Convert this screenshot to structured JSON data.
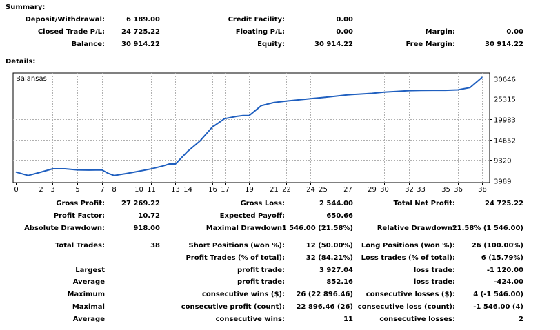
{
  "summary": {
    "heading": "Summary:",
    "deposit_withdrawal": {
      "label": "Deposit/Withdrawal:",
      "value": "6 189.00"
    },
    "closed_trade_pl": {
      "label": "Closed Trade P/L:",
      "value": "24 725.22"
    },
    "balance": {
      "label": "Balance:",
      "value": "30 914.22"
    },
    "credit_facility": {
      "label": "Credit Facility:",
      "value": "0.00"
    },
    "floating_pl": {
      "label": "Floating P/L:",
      "value": "0.00"
    },
    "equity": {
      "label": "Equity:",
      "value": "30 914.22"
    },
    "margin": {
      "label": "Margin:",
      "value": "0.00"
    },
    "free_margin": {
      "label": "Free Margin:",
      "value": "30 914.22"
    }
  },
  "details": {
    "heading": "Details:",
    "gross_profit": {
      "label": "Gross Profit:",
      "value": "27 269.22"
    },
    "gross_loss": {
      "label": "Gross Loss:",
      "value": "2 544.00"
    },
    "total_net_profit": {
      "label": "Total Net Profit:",
      "value": "24 725.22"
    },
    "profit_factor": {
      "label": "Profit Factor:",
      "value": "10.72"
    },
    "expected_payoff": {
      "label": "Expected Payoff:",
      "value": "650.66"
    },
    "absolute_drawdown": {
      "label": "Absolute Drawdown:",
      "value": "918.00"
    },
    "maximal_drawdown": {
      "label": "Maximal Drawdown:",
      "value": "1 546.00 (21.58%)"
    },
    "relative_drawdown": {
      "label": "Relative Drawdown:",
      "value": "21.58% (1 546.00)"
    },
    "total_trades": {
      "label": "Total Trades:",
      "value": "38"
    },
    "short_positions": {
      "label": "Short Positions (won %):",
      "value": "12 (50.00%)"
    },
    "long_positions": {
      "label": "Long Positions (won %):",
      "value": "26 (100.00%)"
    },
    "profit_trades": {
      "label": "Profit Trades (% of total):",
      "value": "32 (84.21%)"
    },
    "loss_trades": {
      "label": "Loss trades (% of total):",
      "value": "6 (15.79%)"
    },
    "largest": {
      "label": "Largest",
      "profit_label": "profit trade:",
      "profit_value": "3 927.04",
      "loss_label": "loss trade:",
      "loss_value": "-1 120.00"
    },
    "average": {
      "label": "Average",
      "profit_label": "profit trade:",
      "profit_value": "852.16",
      "loss_label": "loss trade:",
      "loss_value": "-424.00"
    },
    "maximum": {
      "label": "Maximum",
      "profit_label": "consecutive wins ($):",
      "profit_value": "26 (22 896.46)",
      "loss_label": "consecutive losses ($):",
      "loss_value": "4 (-1 546.00)"
    },
    "maximal": {
      "label": "Maximal",
      "profit_label": "consecutive profit (count):",
      "profit_value": "22 896.46 (26)",
      "loss_label": "consecutive loss (count):",
      "loss_value": "-1 546.00 (4)"
    },
    "average2": {
      "label": "Average",
      "profit_label": "consecutive wins:",
      "profit_value": "11",
      "loss_label": "consecutive losses:",
      "loss_value": "2"
    }
  },
  "chart_data": {
    "type": "line",
    "title": "",
    "legend": "Balansas",
    "xlabel": "",
    "ylabel": "",
    "x_ticks": [
      0,
      2,
      3,
      5,
      7,
      8,
      10,
      11,
      13,
      14,
      16,
      17,
      19,
      21,
      22,
      24,
      25,
      27,
      29,
      30,
      32,
      33,
      35,
      36,
      38
    ],
    "y_ticks": [
      3989,
      9320,
      14652,
      19983,
      25315,
      30646
    ],
    "xlim": [
      0,
      38.6
    ],
    "ylim": [
      3989,
      32000
    ],
    "series": [
      {
        "name": "Balansas",
        "color": "#1f5fbf",
        "x": [
          0,
          1,
          2,
          3,
          4,
          5,
          6,
          7,
          7.5,
          8,
          9,
          10,
          11,
          12,
          12.5,
          13,
          14,
          15,
          16,
          17,
          18,
          18.5,
          19,
          20,
          21,
          22,
          23,
          24,
          25,
          26,
          27,
          28,
          29,
          30,
          31,
          32,
          33,
          34,
          35,
          36,
          37,
          38
        ],
        "y": [
          6189,
          5300,
          6150,
          7050,
          7050,
          6750,
          6700,
          6750,
          5900,
          5300,
          5800,
          6400,
          7000,
          7800,
          8300,
          8300,
          11600,
          14300,
          17900,
          20100,
          20700,
          20900,
          20900,
          23500,
          24300,
          24700,
          25000,
          25300,
          25600,
          25950,
          26300,
          26500,
          26700,
          27000,
          27200,
          27400,
          27450,
          27500,
          27500,
          27600,
          28200,
          30914
        ]
      }
    ]
  }
}
